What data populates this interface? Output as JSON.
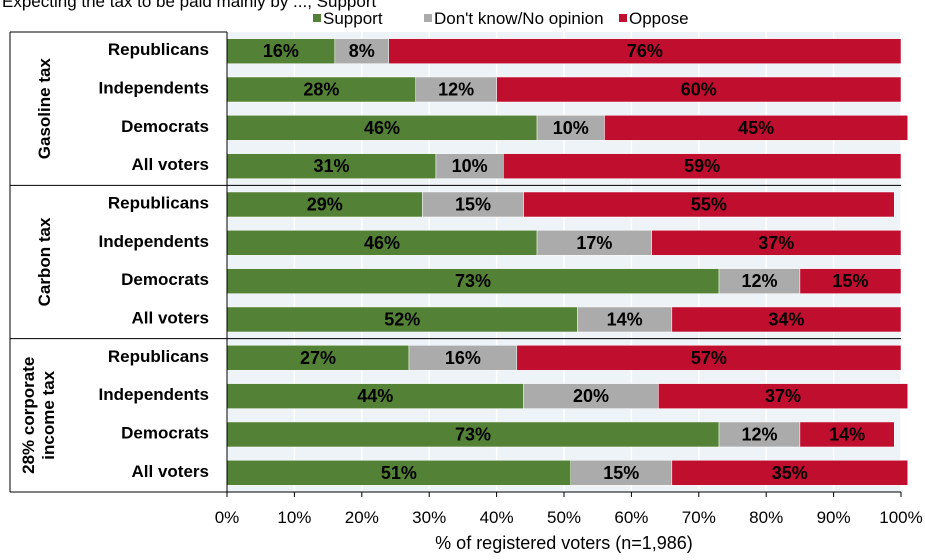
{
  "chart_data": {
    "type": "bar",
    "orientation": "horizontal",
    "stacked": true,
    "title": "",
    "top_text": "Expecting the tax to be paid mainly by ..., Support",
    "xlabel": "% of registered voters (n=1,986)",
    "ylabel": "",
    "xlim": [
      0,
      100
    ],
    "x_ticks": [
      "0%",
      "10%",
      "20%",
      "30%",
      "40%",
      "50%",
      "60%",
      "70%",
      "80%",
      "90%",
      "100%"
    ],
    "grid": true,
    "legend_position": "top",
    "series": [
      {
        "name": "Support",
        "color": "#538135"
      },
      {
        "name": "Don't know/No opinion",
        "color": "#ABABAB"
      },
      {
        "name": "Oppose",
        "color": "#C00E2F"
      }
    ],
    "groups": [
      {
        "name": "Gasoline tax",
        "rows": [
          {
            "label": "Republicans",
            "values": [
              16,
              8,
              76
            ],
            "labels": [
              "16%",
              "8%",
              "76%"
            ]
          },
          {
            "label": "Independents",
            "values": [
              28,
              12,
              60
            ],
            "labels": [
              "28%",
              "12%",
              "60%"
            ]
          },
          {
            "label": "Democrats",
            "values": [
              46,
              10,
              45
            ],
            "labels": [
              "46%",
              "10%",
              "45%"
            ]
          },
          {
            "label": "All voters",
            "values": [
              31,
              10,
              59
            ],
            "labels": [
              "31%",
              "10%",
              "59%"
            ]
          }
        ]
      },
      {
        "name": "Carbon tax",
        "rows": [
          {
            "label": "Republicans",
            "values": [
              29,
              15,
              55
            ],
            "labels": [
              "29%",
              "15%",
              "55%"
            ]
          },
          {
            "label": "Independents",
            "values": [
              46,
              17,
              37
            ],
            "labels": [
              "46%",
              "17%",
              "37%"
            ]
          },
          {
            "label": "Democrats",
            "values": [
              73,
              12,
              15
            ],
            "labels": [
              "73%",
              "12%",
              "15%"
            ]
          },
          {
            "label": "All voters",
            "values": [
              52,
              14,
              34
            ],
            "labels": [
              "52%",
              "14%",
              "34%"
            ]
          }
        ]
      },
      {
        "name": "28% corporate income tax",
        "name_lines": [
          "28% corporate",
          "income tax"
        ],
        "rows": [
          {
            "label": "Republicans",
            "values": [
              27,
              16,
              57
            ],
            "labels": [
              "27%",
              "16%",
              "57%"
            ]
          },
          {
            "label": "Independents",
            "values": [
              44,
              20,
              37
            ],
            "labels": [
              "44%",
              "20%",
              "37%"
            ]
          },
          {
            "label": "Democrats",
            "values": [
              73,
              12,
              14
            ],
            "labels": [
              "73%",
              "12%",
              "14%"
            ]
          },
          {
            "label": "All voters",
            "values": [
              51,
              15,
              35
            ],
            "labels": [
              "51%",
              "15%",
              "35%"
            ]
          }
        ]
      }
    ]
  }
}
